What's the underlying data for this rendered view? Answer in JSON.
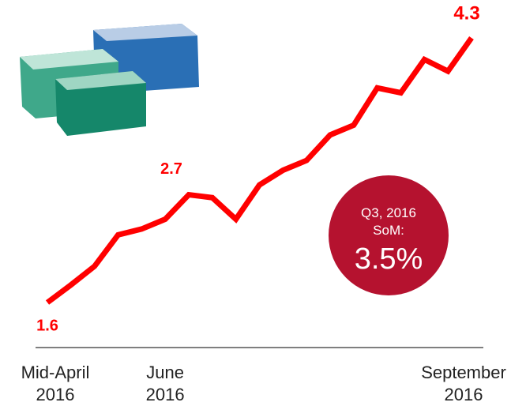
{
  "chart_data": {
    "type": "line",
    "categories": [
      "Mid-April\n2016",
      null,
      null,
      null,
      null,
      "June\n2016",
      null,
      null,
      null,
      null,
      null,
      null,
      null,
      null,
      null,
      null,
      null,
      null,
      "September\n2016"
    ],
    "values": [
      1.6,
      1.78,
      1.97,
      2.29,
      2.35,
      2.45,
      2.7,
      2.67,
      2.45,
      2.8,
      2.95,
      3.05,
      3.31,
      3.41,
      3.79,
      3.74,
      4.08,
      3.96,
      4.3
    ],
    "value_labels": [
      "1.6",
      null,
      null,
      null,
      null,
      null,
      "2.7",
      null,
      null,
      null,
      null,
      null,
      null,
      null,
      null,
      null,
      null,
      null,
      "4.3"
    ],
    "color": "#ff0000",
    "annotation": {
      "title": "Q3, 2016\nSoM:",
      "value": "3.5%",
      "color": "#b5122f"
    }
  }
}
